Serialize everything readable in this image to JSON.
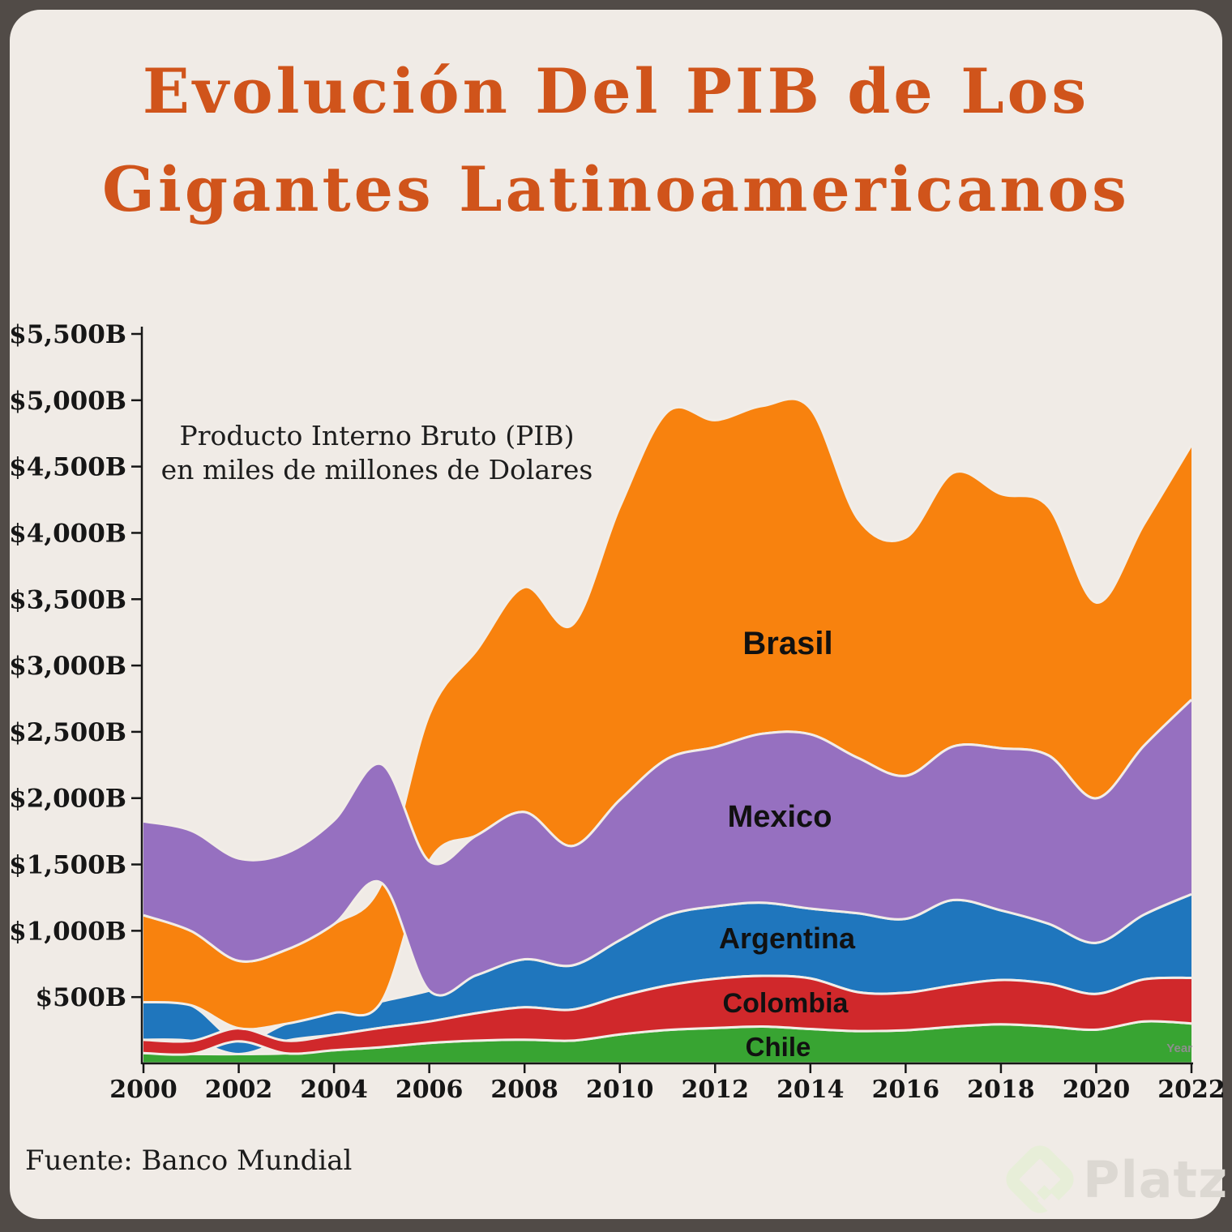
{
  "title": {
    "line1": "Evolución Del PIB de Los",
    "line2": "Gigantes Latinoamericanos",
    "color": "#d0541b"
  },
  "subtitle": {
    "line1": "Producto Interno Bruto (PIB)",
    "line2": "en miles de millones de Dolares"
  },
  "source": {
    "text": "Fuente: Banco Mundial"
  },
  "watermark": {
    "icon": "platzi-diamond-logo",
    "text": "Platzi"
  },
  "chart_data": {
    "type": "area",
    "variant": "stacked area / stream, stack order re-sorted ascending by value each year",
    "title": "Evolución Del PIB de Los Gigantes Latinoamericanos",
    "subtitle": "Producto Interno Bruto (PIB) en miles de millones de Dolares",
    "xlabel": "Year",
    "ylabel": "",
    "units": "billions of current USD",
    "grid": false,
    "legend": "labels drawn inside bands",
    "ylim": [
      0,
      5500
    ],
    "x": [
      2000,
      2001,
      2002,
      2003,
      2004,
      2005,
      2006,
      2007,
      2008,
      2009,
      2010,
      2011,
      2012,
      2013,
      2014,
      2015,
      2016,
      2017,
      2018,
      2019,
      2020,
      2021,
      2022
    ],
    "x_tick_labels": [
      "2000",
      "2002",
      "2004",
      "2006",
      "2008",
      "2010",
      "2012",
      "2014",
      "2016",
      "2018",
      "2020",
      "2022"
    ],
    "y_tick_values": [
      500,
      1000,
      1500,
      2000,
      2500,
      3000,
      3500,
      4000,
      4500,
      5000,
      5500
    ],
    "y_tick_labels": [
      "$500B",
      "$1,000B",
      "$1,500B",
      "$2,000B",
      "$2,500B",
      "$3,000B",
      "$3,500B",
      "$4,000B",
      "$4,500B",
      "$5,000B",
      "$5,500B"
    ],
    "series": [
      {
        "name": "Chile",
        "color": "#38a432",
        "values": [
          78,
          71,
          70,
          76,
          99,
          122,
          154,
          172,
          179,
          172,
          218,
          252,
          267,
          278,
          260,
          244,
          250,
          277,
          295,
          278,
          254,
          316,
          301
        ]
      },
      {
        "name": "Colombia",
        "color": "#d0282b",
        "values": [
          100,
          98,
          98,
          95,
          117,
          147,
          162,
          207,
          244,
          234,
          287,
          335,
          371,
          382,
          381,
          293,
          283,
          311,
          334,
          323,
          270,
          318,
          344
        ]
      },
      {
        "name": "Argentina",
        "color": "#1f76bd",
        "values": [
          284,
          269,
          97,
          128,
          165,
          199,
          233,
          288,
          362,
          333,
          424,
          530,
          546,
          552,
          526,
          595,
          557,
          644,
          525,
          452,
          385,
          487,
          631
        ]
      },
      {
        "name": "Mexico",
        "color": "#9670c0",
        "values": [
          708,
          757,
          772,
          729,
          782,
          895,
          975,
          1053,
          1110,
          900,
          1058,
          1180,
          1201,
          1274,
          1315,
          1171,
          1078,
          1158,
          1222,
          1269,
          1090,
          1273,
          1466
        ]
      },
      {
        "name": "Brasil",
        "color": "#f8820e",
        "values": [
          655,
          560,
          508,
          558,
          669,
          892,
          1107,
          1397,
          1696,
          1667,
          2209,
          2616,
          2465,
          2472,
          2456,
          1802,
          1796,
          2063,
          1917,
          1873,
          1476,
          1670,
          1920
        ]
      }
    ],
    "paint_order": [
      "Chile",
      "Argentina",
      "Colombia",
      "Brasil",
      "Mexico"
    ],
    "background": "#f0ebe6",
    "separator_color": "#f2ede7",
    "axis_color": "#161616"
  }
}
